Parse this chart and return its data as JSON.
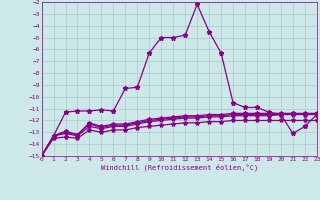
{
  "title": "",
  "xlabel": "Windchill (Refroidissement éolien,°C)",
  "background_color": "#cce8e8",
  "grid_color": "#aacccc",
  "line_color": "#880088",
  "xlim": [
    0,
    23
  ],
  "ylim": [
    -15,
    -2
  ],
  "xticks": [
    0,
    1,
    2,
    3,
    4,
    5,
    6,
    7,
    8,
    9,
    10,
    11,
    12,
    13,
    14,
    15,
    16,
    17,
    18,
    19,
    20,
    21,
    22,
    23
  ],
  "yticks": [
    -2,
    -3,
    -4,
    -5,
    -6,
    -7,
    -8,
    -9,
    -10,
    -11,
    -12,
    -13,
    -14,
    -15
  ],
  "line1_x": [
    0,
    1,
    2,
    3,
    4,
    5,
    6,
    7,
    8,
    9,
    10,
    11,
    12,
    13,
    14,
    15,
    16,
    17,
    18,
    19,
    20,
    21,
    22,
    23
  ],
  "line1_y": [
    -15.0,
    -13.3,
    -11.3,
    -11.2,
    -11.2,
    -11.1,
    -11.2,
    -9.3,
    -9.2,
    -6.3,
    -5.0,
    -5.0,
    -4.8,
    -2.2,
    -4.5,
    -6.3,
    -10.5,
    -10.9,
    -10.9,
    -11.3,
    -11.5,
    -13.1,
    -12.5,
    -11.5
  ],
  "line2_x": [
    0,
    1,
    2,
    3,
    4,
    5,
    6,
    7,
    8,
    9,
    10,
    11,
    12,
    13,
    14,
    15,
    16,
    17,
    18,
    19,
    20,
    21,
    22,
    23
  ],
  "line2_y": [
    -15.0,
    -13.3,
    -12.9,
    -13.2,
    -12.2,
    -12.5,
    -12.3,
    -12.3,
    -12.1,
    -11.9,
    -11.8,
    -11.7,
    -11.6,
    -11.6,
    -11.5,
    -11.5,
    -11.4,
    -11.4,
    -11.4,
    -11.4,
    -11.4,
    -11.4,
    -11.4,
    -11.4
  ],
  "line3_x": [
    0,
    1,
    2,
    3,
    4,
    5,
    6,
    7,
    8,
    9,
    10,
    11,
    12,
    13,
    14,
    15,
    16,
    17,
    18,
    19,
    20,
    21,
    22,
    23
  ],
  "line3_y": [
    -15.0,
    -13.3,
    -13.0,
    -13.2,
    -12.3,
    -12.6,
    -12.4,
    -12.4,
    -12.2,
    -12.0,
    -11.9,
    -11.8,
    -11.7,
    -11.7,
    -11.6,
    -11.6,
    -11.5,
    -11.5,
    -11.5,
    -11.5,
    -11.5,
    -11.4,
    -11.5,
    -11.4
  ],
  "line4_x": [
    0,
    1,
    2,
    3,
    4,
    5,
    6,
    7,
    8,
    9,
    10,
    11,
    12,
    13,
    14,
    15,
    16,
    17,
    18,
    19,
    20,
    21,
    22,
    23
  ],
  "line4_y": [
    -15.0,
    -13.3,
    -13.1,
    -13.3,
    -12.5,
    -12.7,
    -12.5,
    -12.5,
    -12.3,
    -12.1,
    -12.0,
    -11.9,
    -11.8,
    -11.8,
    -11.7,
    -11.7,
    -11.6,
    -11.6,
    -11.6,
    -11.6,
    -11.5,
    -11.5,
    -11.5,
    -11.5
  ],
  "line5_x": [
    0,
    1,
    2,
    3,
    4,
    5,
    6,
    7,
    8,
    9,
    10,
    11,
    12,
    13,
    14,
    15,
    16,
    17,
    18,
    19,
    20,
    21,
    22,
    23
  ],
  "line5_y": [
    -15.0,
    -13.5,
    -13.4,
    -13.5,
    -12.8,
    -13.0,
    -12.8,
    -12.8,
    -12.6,
    -12.5,
    -12.4,
    -12.3,
    -12.2,
    -12.2,
    -12.1,
    -12.1,
    -12.0,
    -12.0,
    -12.0,
    -12.0,
    -12.0,
    -12.0,
    -12.0,
    -12.0
  ],
  "marker_size": 3.5,
  "line_width": 0.9
}
